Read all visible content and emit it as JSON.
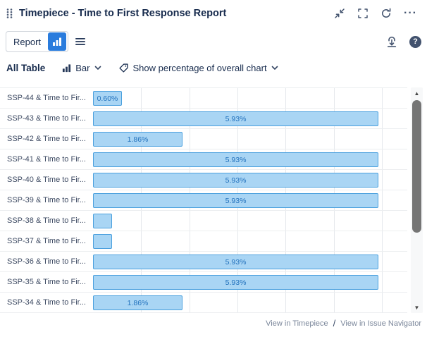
{
  "header": {
    "title": "Timepiece - Time to First Response Report",
    "more_glyph": "···"
  },
  "toolbar": {
    "report_label": "Report",
    "help_glyph": "?"
  },
  "controls": {
    "table_label": "All Table",
    "chart_type": "Bar",
    "display_option": "Show percentage of overall chart"
  },
  "scrollbar": {
    "up_glyph": "▲",
    "down_glyph": "▼"
  },
  "footer": {
    "link_timepiece": "View in Timepiece",
    "separator": "/",
    "link_issue_navigator": "View in Issue Navigator"
  },
  "chart_data": {
    "type": "bar",
    "orientation": "horizontal",
    "title": "Time to First Response Report",
    "categories": [
      "SSP-44 & Time to Fir...",
      "SSP-43 & Time to Fir...",
      "SSP-42 & Time to Fir...",
      "SSP-41 & Time to Fir...",
      "SSP-40 & Time to Fir...",
      "SSP-39 & Time to Fir...",
      "SSP-38 & Time to Fir...",
      "SSP-37 & Time to Fir...",
      "SSP-36 & Time to Fir...",
      "SSP-35 & Time to Fir...",
      "SSP-34 & Time to Fir..."
    ],
    "values": [
      0.6,
      5.93,
      1.86,
      5.93,
      5.93,
      5.93,
      0.4,
      0.4,
      5.93,
      5.93,
      1.86
    ],
    "bar_labels": [
      "0.60%",
      "5.93%",
      "1.86%",
      "5.93%",
      "5.93%",
      "5.93%",
      "",
      "",
      "5.93%",
      "5.93%",
      "1.86%"
    ],
    "unit": "%",
    "xlim": [
      0,
      6.5
    ],
    "gridlines_percent": [
      1,
      2,
      3,
      4,
      5,
      6
    ],
    "legend": "Show percentage of overall chart",
    "colors": {
      "bar_fill": "#a9d5f4",
      "bar_border": "#4aa0de",
      "label": "#2272bd",
      "gridline": "#e5e8ec"
    }
  }
}
